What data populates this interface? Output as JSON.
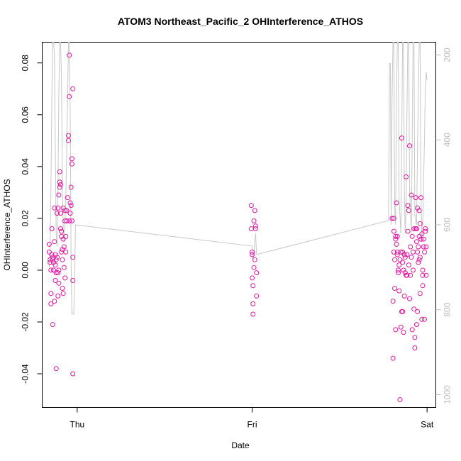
{
  "chart_data": {
    "type": "scatter",
    "title": "ATOM3 Northeast_Pacific_2 OHInterference_ATHOS",
    "xlabel": "Date",
    "ylabel": "OHInterference_ATHOS",
    "x_ticks": [
      "Thu",
      "Fri",
      "Sat"
    ],
    "x_tick_values": [
      1.0,
      2.0,
      3.0
    ],
    "xlim": [
      0.8,
      3.05
    ],
    "ylim": [
      -0.053,
      0.088
    ],
    "y_ticks": [
      -0.04,
      -0.02,
      0.0,
      0.02,
      0.04,
      0.06,
      0.08
    ],
    "y_tick_labels": [
      "-0.04",
      "-0.02",
      "0.00",
      "0.02",
      "0.04",
      "0.06",
      "0.08"
    ],
    "y2_ticks": [
      200,
      400,
      600,
      800,
      1000
    ],
    "y2_tick_labels": [
      "200",
      "400",
      "600",
      "800",
      "1000"
    ],
    "y2lim": [
      1030,
      170
    ],
    "y2_reversed": true,
    "grid": false,
    "legend": "none",
    "series": [
      {
        "type": "scatter",
        "color": "#e5159f",
        "marker": "open-circle",
        "points": [
          [
            0.84,
            0.01
          ],
          [
            0.84,
            0.007
          ],
          [
            0.845,
            0.004
          ],
          [
            0.845,
            0.003
          ],
          [
            0.85,
            -0.009
          ],
          [
            0.85,
            -0.013
          ],
          [
            0.85,
            0.0
          ],
          [
            0.855,
            0.016
          ],
          [
            0.855,
            0.006
          ],
          [
            0.86,
            -0.021
          ],
          [
            0.86,
            0.005
          ],
          [
            0.86,
            0.004
          ],
          [
            0.865,
            0.003
          ],
          [
            0.865,
            0.0
          ],
          [
            0.87,
            -0.012
          ],
          [
            0.87,
            0.024
          ],
          [
            0.87,
            0.011
          ],
          [
            0.875,
            0.006
          ],
          [
            0.875,
            -0.004
          ],
          [
            0.875,
            0.002
          ],
          [
            0.88,
            -0.001
          ],
          [
            0.88,
            -0.038
          ],
          [
            0.88,
            0.004
          ],
          [
            0.885,
            0.022
          ],
          [
            0.885,
            0.005
          ],
          [
            0.89,
            0.024
          ],
          [
            0.89,
            -0.001
          ],
          [
            0.89,
            -0.01
          ],
          [
            0.895,
            -0.005
          ],
          [
            0.895,
            0.0
          ],
          [
            0.895,
            0.029
          ],
          [
            0.9,
            0.034
          ],
          [
            0.9,
            0.032
          ],
          [
            0.9,
            0.038
          ],
          [
            0.905,
            0.033
          ],
          [
            0.905,
            0.022
          ],
          [
            0.905,
            0.016
          ],
          [
            0.91,
            0.015
          ],
          [
            0.91,
            0.007
          ],
          [
            0.91,
            0.013
          ],
          [
            0.915,
            0.004
          ],
          [
            0.915,
            0.008
          ],
          [
            0.915,
            -0.007
          ],
          [
            0.92,
            0.024
          ],
          [
            0.92,
            -0.009
          ],
          [
            0.92,
            0.012
          ],
          [
            0.925,
            0.009
          ],
          [
            0.925,
            0.001
          ],
          [
            0.93,
            0.023
          ],
          [
            0.93,
            -0.003
          ],
          [
            0.93,
            0.019
          ],
          [
            0.935,
            0.013
          ],
          [
            0.935,
            0.007
          ],
          [
            0.94,
            0.023
          ],
          [
            0.94,
            0.019
          ],
          [
            0.945,
            0.028
          ],
          [
            0.95,
            0.052
          ],
          [
            0.95,
            0.05
          ],
          [
            0.955,
            0.067
          ],
          [
            0.955,
            0.019
          ],
          [
            0.955,
            0.083
          ],
          [
            0.96,
            0.022
          ],
          [
            0.96,
            0.026
          ],
          [
            0.965,
            0.025
          ],
          [
            0.965,
            0.032
          ],
          [
            0.97,
            0.043
          ],
          [
            0.97,
            0.041
          ],
          [
            0.97,
            0.019
          ],
          [
            0.975,
            0.07
          ],
          [
            0.975,
            0.005
          ],
          [
            0.975,
            -0.04
          ],
          [
            0.975,
            -0.004
          ],
          [
            1.995,
            0.025
          ],
          [
            1.995,
            0.016
          ],
          [
            2.0,
            0.007
          ],
          [
            2.0,
            0.006
          ],
          [
            2.0,
            -0.003
          ],
          [
            2.005,
            -0.006
          ],
          [
            2.005,
            -0.013
          ],
          [
            2.005,
            -0.017
          ],
          [
            2.01,
            0.001
          ],
          [
            2.01,
            0.019
          ],
          [
            2.015,
            0.023
          ],
          [
            2.015,
            0.004
          ],
          [
            2.02,
            0.017
          ],
          [
            2.02,
            0.016
          ],
          [
            2.025,
            -0.001
          ],
          [
            2.025,
            -0.01
          ],
          [
            2.8,
            0.02
          ],
          [
            2.805,
            -0.012
          ],
          [
            2.805,
            -0.034
          ],
          [
            2.81,
            0.02
          ],
          [
            2.81,
            0.015
          ],
          [
            2.81,
            0.007
          ],
          [
            2.815,
            -0.007
          ],
          [
            2.815,
            0.004
          ],
          [
            2.82,
            0.013
          ],
          [
            2.82,
            0.012
          ],
          [
            2.82,
            -0.023
          ],
          [
            2.825,
            0.026
          ],
          [
            2.825,
            0.01
          ],
          [
            2.83,
            0.013
          ],
          [
            2.83,
            0.007
          ],
          [
            2.83,
            0.006
          ],
          [
            2.835,
            0.0
          ],
          [
            2.835,
            -0.001
          ],
          [
            2.84,
            -0.008
          ],
          [
            2.84,
            0.002
          ],
          [
            2.845,
            0.004
          ],
          [
            2.845,
            -0.05
          ],
          [
            2.85,
            0.007
          ],
          [
            2.85,
            -0.022
          ],
          [
            2.855,
            -0.016
          ],
          [
            2.855,
            0.051
          ],
          [
            2.86,
            -0.016
          ],
          [
            2.86,
            0.003
          ],
          [
            2.86,
            0.007
          ],
          [
            2.865,
            -0.024
          ],
          [
            2.865,
            0.0
          ],
          [
            2.87,
            -0.01
          ],
          [
            2.87,
            0.006
          ],
          [
            2.875,
            0.005
          ],
          [
            2.875,
            -0.001
          ],
          [
            2.88,
            0.036
          ],
          [
            2.88,
            -0.002
          ],
          [
            2.885,
            0.006
          ],
          [
            2.885,
            -0.002
          ],
          [
            2.89,
            0.015
          ],
          [
            2.89,
            0.025
          ],
          [
            2.895,
            0.023
          ],
          [
            2.895,
            0.002
          ],
          [
            2.9,
            0.048
          ],
          [
            2.9,
            -0.011
          ],
          [
            2.905,
            0.009
          ],
          [
            2.905,
            -0.002
          ],
          [
            2.91,
            0.029
          ],
          [
            2.91,
            0.005
          ],
          [
            2.915,
            0.013
          ],
          [
            2.915,
            -0.023
          ],
          [
            2.92,
            0.007
          ],
          [
            2.92,
            0.0
          ],
          [
            2.925,
            -0.015
          ],
          [
            2.925,
            0.016
          ],
          [
            2.93,
            -0.026
          ],
          [
            2.93,
            -0.03
          ],
          [
            2.935,
            0.016
          ],
          [
            2.935,
            0.028
          ],
          [
            2.94,
            -0.021
          ],
          [
            2.94,
            0.011
          ],
          [
            2.945,
            -0.016
          ],
          [
            2.945,
            0.024
          ],
          [
            2.95,
            0.003
          ],
          [
            2.95,
            0.009
          ],
          [
            2.955,
            0.013
          ],
          [
            2.955,
            0.023
          ],
          [
            2.96,
            0.018
          ],
          [
            2.96,
            0.005
          ],
          [
            2.965,
            0.028
          ],
          [
            2.965,
            0.012
          ],
          [
            2.97,
            0.014
          ],
          [
            2.97,
            -0.019
          ],
          [
            2.975,
            0.0
          ],
          [
            2.975,
            -0.002
          ],
          [
            2.98,
            0.012
          ],
          [
            2.98,
            0.009
          ],
          [
            2.985,
            -0.019
          ],
          [
            2.985,
            0.007
          ],
          [
            2.99,
            0.016
          ],
          [
            2.99,
            0.015
          ],
          [
            2.995,
            0.009
          ],
          [
            2.995,
            -0.002
          ],
          [
            2.975,
            -0.006
          ],
          [
            2.96,
            -0.009
          ],
          [
            2.955,
            0.004
          ],
          [
            2.945,
            0.007
          ],
          [
            2.94,
            0.016
          ]
        ]
      },
      {
        "type": "line",
        "color": "#c8c8c8",
        "axis": "right",
        "points": [
          [
            0.84,
            700
          ],
          [
            0.845,
            640
          ],
          [
            0.85,
            520
          ],
          [
            0.855,
            300
          ],
          [
            0.86,
            170
          ],
          [
            0.865,
            170
          ],
          [
            0.87,
            200
          ],
          [
            0.875,
            420
          ],
          [
            0.88,
            620
          ],
          [
            0.885,
            650
          ],
          [
            0.89,
            520
          ],
          [
            0.895,
            300
          ],
          [
            0.9,
            170
          ],
          [
            0.905,
            170
          ],
          [
            0.91,
            250
          ],
          [
            0.915,
            480
          ],
          [
            0.92,
            620
          ],
          [
            0.925,
            640
          ],
          [
            0.93,
            600
          ],
          [
            0.935,
            540
          ],
          [
            0.94,
            430
          ],
          [
            0.945,
            300
          ],
          [
            0.95,
            170
          ],
          [
            0.955,
            170
          ],
          [
            0.96,
            340
          ],
          [
            0.965,
            680
          ],
          [
            0.97,
            810
          ],
          [
            0.98,
            810
          ],
          [
            0.985,
            760
          ],
          [
            0.99,
            600
          ],
          [
            2.0,
            650
          ],
          [
            2.005,
            680
          ],
          [
            2.01,
            670
          ],
          [
            2.015,
            640
          ],
          [
            2.02,
            620
          ],
          [
            2.025,
            670
          ],
          [
            2.78,
            590
          ],
          [
            2.785,
            220
          ],
          [
            2.79,
            220
          ],
          [
            2.795,
            600
          ],
          [
            2.8,
            300
          ],
          [
            2.805,
            170
          ],
          [
            2.81,
            170
          ],
          [
            2.815,
            560
          ],
          [
            2.82,
            600
          ],
          [
            2.825,
            300
          ],
          [
            2.83,
            170
          ],
          [
            2.835,
            170
          ],
          [
            2.84,
            540
          ],
          [
            2.85,
            620
          ],
          [
            2.855,
            400
          ],
          [
            2.86,
            170
          ],
          [
            2.865,
            170
          ],
          [
            2.87,
            520
          ],
          [
            2.875,
            620
          ],
          [
            2.88,
            560
          ],
          [
            2.885,
            330
          ],
          [
            2.89,
            170
          ],
          [
            2.895,
            170
          ],
          [
            2.9,
            510
          ],
          [
            2.91,
            620
          ],
          [
            2.915,
            400
          ],
          [
            2.92,
            170
          ],
          [
            2.925,
            170
          ],
          [
            2.93,
            580
          ],
          [
            2.94,
            600
          ],
          [
            2.945,
            430
          ],
          [
            2.95,
            300
          ],
          [
            2.955,
            170
          ],
          [
            2.96,
            170
          ],
          [
            2.965,
            520
          ],
          [
            2.97,
            640
          ],
          [
            2.975,
            600
          ],
          [
            2.98,
            500
          ],
          [
            2.985,
            400
          ],
          [
            2.99,
            280
          ],
          [
            2.995,
            240
          ],
          [
            3.0,
            260
          ]
        ]
      }
    ]
  }
}
